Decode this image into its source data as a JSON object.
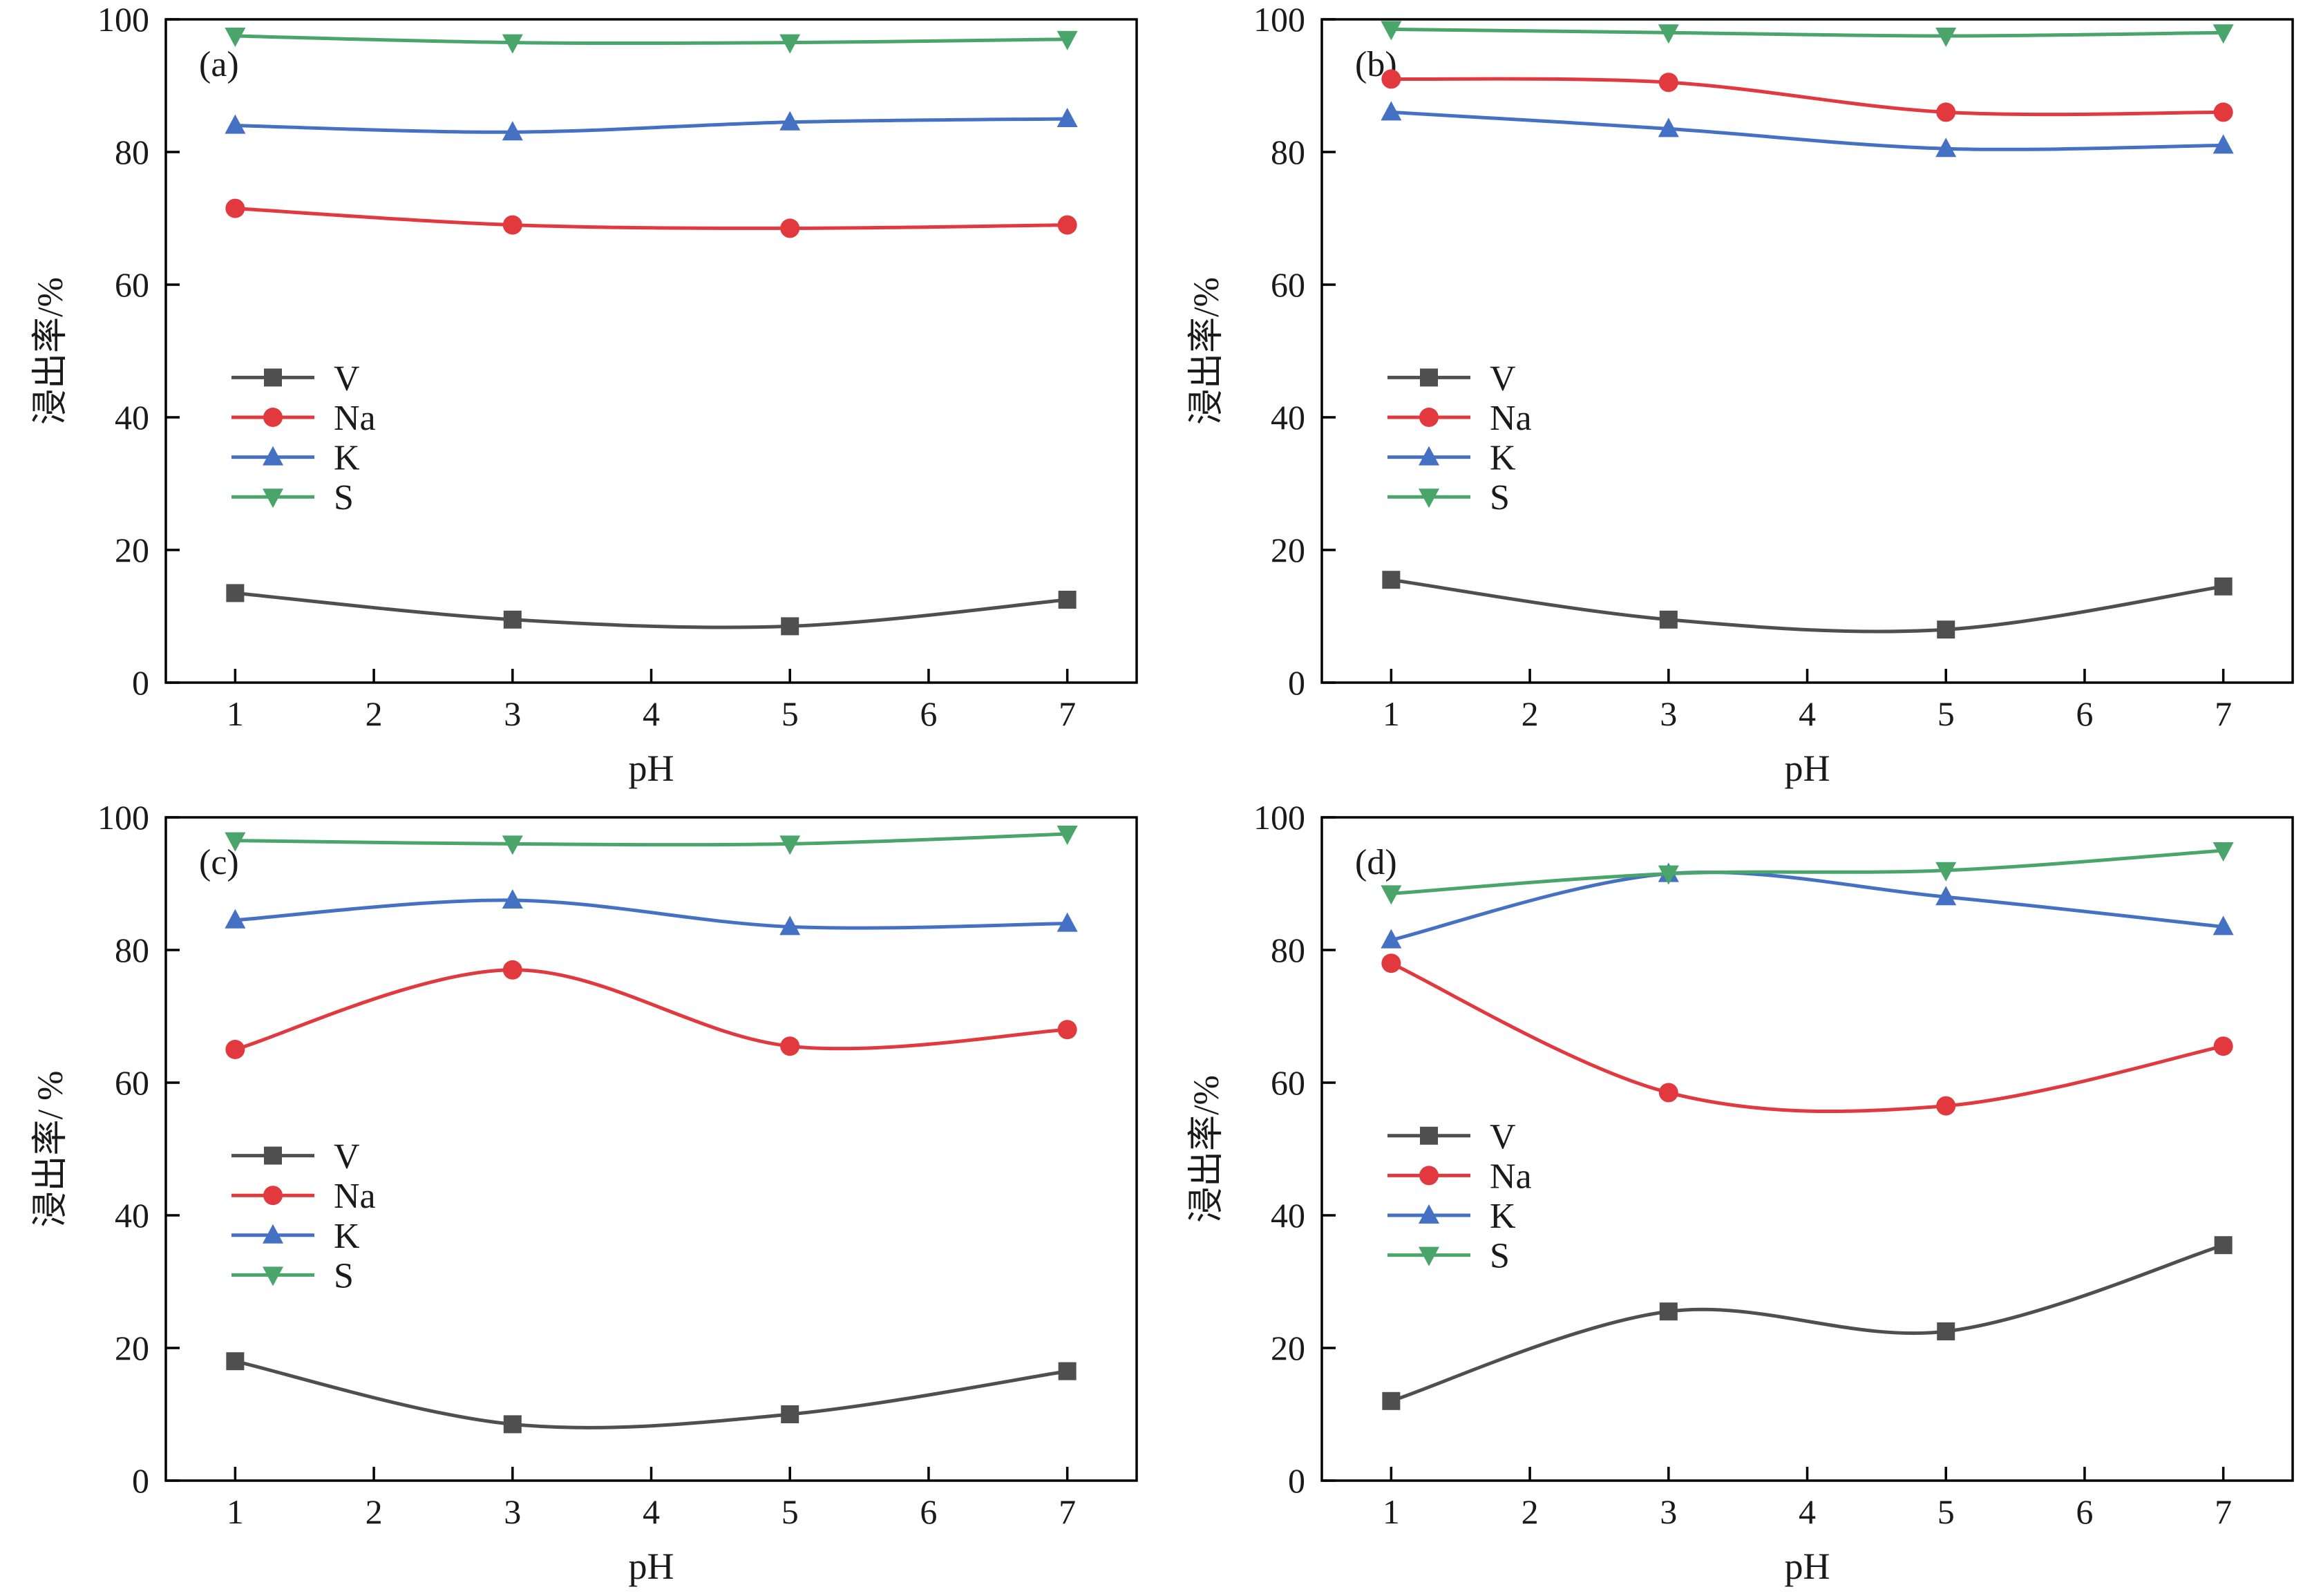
{
  "figure": {
    "background": "#ffffff",
    "text_color": "#1a1a1a",
    "axis_color": "#000000",
    "series_styles": [
      {
        "name": "V",
        "color": "#4f4f4f",
        "marker": "square"
      },
      {
        "name": "Na",
        "color": "#e2393f",
        "marker": "circle"
      },
      {
        "name": "K",
        "color": "#4471c4",
        "marker": "triangle-up"
      },
      {
        "name": "S",
        "color": "#49a56a",
        "marker": "triangle-down"
      }
    ]
  },
  "chart_data": [
    {
      "type": "line",
      "panel_label": "(a)",
      "xlabel": "pH",
      "ylabel": "浸出率/%",
      "x": [
        1,
        3,
        5,
        7
      ],
      "xlim": [
        0.5,
        7.5
      ],
      "ylim": [
        0,
        100
      ],
      "xticks": [
        1,
        2,
        3,
        4,
        5,
        6,
        7
      ],
      "yticks": [
        0,
        20,
        40,
        60,
        80,
        100
      ],
      "grid": false,
      "legend_entries": [
        "V",
        "Na",
        "K",
        "S"
      ],
      "legend_position": "center-left",
      "legend_top_value": 46,
      "series": [
        {
          "name": "V",
          "values": [
            13.5,
            9.5,
            8.5,
            12.5
          ]
        },
        {
          "name": "Na",
          "values": [
            71.5,
            69,
            68.5,
            69
          ]
        },
        {
          "name": "K",
          "values": [
            84,
            83,
            84.5,
            85
          ]
        },
        {
          "name": "S",
          "values": [
            97.5,
            96.5,
            96.5,
            97
          ]
        }
      ]
    },
    {
      "type": "line",
      "panel_label": "(b)",
      "xlabel": "pH",
      "ylabel": "浸出率/%",
      "x": [
        1,
        3,
        5,
        7
      ],
      "xlim": [
        0.5,
        7.5
      ],
      "ylim": [
        0,
        100
      ],
      "xticks": [
        1,
        2,
        3,
        4,
        5,
        6,
        7
      ],
      "yticks": [
        0,
        20,
        40,
        60,
        80,
        100
      ],
      "grid": false,
      "legend_entries": [
        "V",
        "Na",
        "K",
        "S"
      ],
      "legend_position": "center-left",
      "legend_top_value": 46,
      "series": [
        {
          "name": "V",
          "values": [
            15.5,
            9.5,
            8,
            14.5
          ]
        },
        {
          "name": "Na",
          "values": [
            91,
            90.5,
            86,
            86
          ]
        },
        {
          "name": "K",
          "values": [
            86,
            83.5,
            80.5,
            81
          ]
        },
        {
          "name": "S",
          "values": [
            98.5,
            98,
            97.5,
            98
          ]
        }
      ]
    },
    {
      "type": "line",
      "panel_label": "(c)",
      "xlabel": "pH",
      "ylabel": "浸出率/ %",
      "x": [
        1,
        3,
        5,
        7
      ],
      "xlim": [
        0.5,
        7.5
      ],
      "ylim": [
        0,
        100
      ],
      "xticks": [
        1,
        2,
        3,
        4,
        5,
        6,
        7
      ],
      "yticks": [
        0,
        20,
        40,
        60,
        80,
        100
      ],
      "grid": false,
      "legend_entries": [
        "V",
        "Na",
        "K",
        "S"
      ],
      "legend_position": "center-left",
      "legend_top_value": 49,
      "series": [
        {
          "name": "V",
          "values": [
            18,
            8.5,
            10,
            16.5
          ]
        },
        {
          "name": "Na",
          "values": [
            65,
            77,
            65.5,
            68
          ]
        },
        {
          "name": "K",
          "values": [
            84.5,
            87.5,
            83.5,
            84
          ]
        },
        {
          "name": "S",
          "values": [
            96.5,
            96,
            96,
            97.5
          ]
        }
      ]
    },
    {
      "type": "line",
      "panel_label": "(d)",
      "xlabel": "pH",
      "ylabel": "浸出率/%",
      "x": [
        1,
        3,
        5,
        7
      ],
      "xlim": [
        0.5,
        7.5
      ],
      "ylim": [
        0,
        100
      ],
      "xticks": [
        1,
        2,
        3,
        4,
        5,
        6,
        7
      ],
      "yticks": [
        0,
        20,
        40,
        60,
        80,
        100
      ],
      "grid": false,
      "legend_entries": [
        "V",
        "Na",
        "K",
        "S"
      ],
      "legend_position": "center-left",
      "legend_top_value": 52,
      "series": [
        {
          "name": "V",
          "values": [
            12,
            25.5,
            22.5,
            35.5
          ]
        },
        {
          "name": "Na",
          "values": [
            78,
            58.5,
            56.5,
            65.5
          ]
        },
        {
          "name": "K",
          "values": [
            81.5,
            91.5,
            88,
            83.5
          ]
        },
        {
          "name": "S",
          "values": [
            88.5,
            91.5,
            92,
            95
          ]
        }
      ]
    }
  ]
}
